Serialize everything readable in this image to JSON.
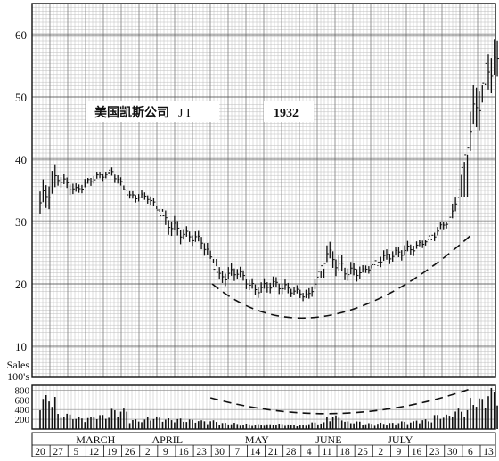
{
  "chart_data": {
    "type": "bar",
    "subtype": "hlc-price-and-volume",
    "title_box": {
      "name": "美国凯斯公司",
      "ticker": "J I",
      "year": "1932"
    },
    "price_axis": {
      "ticks": [
        10,
        20,
        30,
        40,
        50,
        60
      ],
      "ylim": [
        5,
        65
      ]
    },
    "volume_axis": {
      "label": "Sales\n100's",
      "ticks": [
        200,
        400,
        600,
        800
      ],
      "ylim": [
        0,
        900
      ]
    },
    "x_day_labels": [
      "20",
      "27",
      "5",
      "12",
      "19",
      "26",
      "2",
      "9",
      "16",
      "23",
      "30",
      "7",
      "14",
      "21",
      "28",
      "4",
      "11",
      "18",
      "25",
      "2",
      "9",
      "16",
      "23",
      "30",
      "6",
      "13"
    ],
    "x_month_labels": [
      {
        "label": "MARCH",
        "after_day_index": 2
      },
      {
        "label": "APRIL",
        "after_day_index": 6
      },
      {
        "label": "MAY",
        "after_day_index": 11
      },
      {
        "label": "JUNE",
        "after_day_index": 15
      },
      {
        "label": "JULY",
        "after_day_index": 19
      }
    ],
    "weekly_close": [
      33,
      37,
      35,
      37,
      38,
      34,
      34,
      30,
      28,
      27,
      21,
      22,
      19,
      20,
      19,
      18,
      25,
      22,
      22,
      24,
      25,
      26,
      28,
      31,
      45,
      55
    ],
    "weekly_range": [
      [
        29,
        40
      ],
      [
        34,
        39
      ],
      [
        33,
        37
      ],
      [
        35,
        38
      ],
      [
        35,
        39
      ],
      [
        33,
        36
      ],
      [
        32,
        36
      ],
      [
        26,
        33
      ],
      [
        25,
        30
      ],
      [
        24,
        30
      ],
      [
        19,
        25
      ],
      [
        19,
        24
      ],
      [
        17,
        22
      ],
      [
        17,
        22
      ],
      [
        17,
        21
      ],
      [
        16,
        21
      ],
      [
        20,
        28
      ],
      [
        20,
        26
      ],
      [
        20,
        23
      ],
      [
        21,
        26
      ],
      [
        22,
        27
      ],
      [
        24,
        27
      ],
      [
        26,
        30
      ],
      [
        27,
        34
      ],
      [
        33,
        52
      ],
      [
        45,
        62
      ]
    ],
    "weekly_volume": [
      700,
      320,
      250,
      300,
      420,
      200,
      260,
      220,
      200,
      180,
      130,
      110,
      100,
      110,
      90,
      140,
      280,
      160,
      120,
      130,
      160,
      200,
      300,
      420,
      650,
      850
    ],
    "price_arc": {
      "type": "rounding-bottom",
      "start": [
        9.6,
        20
      ],
      "bottom": [
        15.5,
        14.5
      ],
      "end": [
        24.1,
        28
      ]
    },
    "volume_arc": {
      "type": "rounding-bottom",
      "start_week": 9.5,
      "end_week": 24
    }
  }
}
